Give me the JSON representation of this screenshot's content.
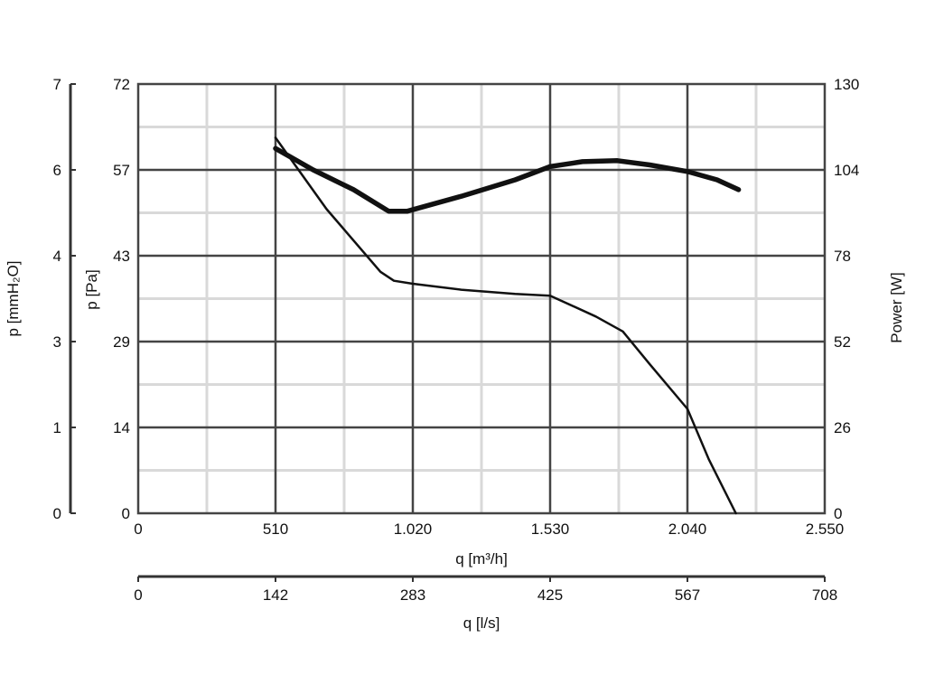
{
  "chart_data": {
    "type": "line",
    "axes": {
      "x_primary": {
        "label": "q [m³/h]",
        "ticks": [
          "0",
          "510",
          "1.020",
          "1.530",
          "2.040",
          "2.550"
        ],
        "range": [
          0,
          2550
        ]
      },
      "x_secondary": {
        "label": "q [l/s]",
        "ticks": [
          "0",
          "142",
          "283",
          "425",
          "567",
          "708"
        ],
        "range": [
          0,
          708
        ]
      },
      "y_left_inner": {
        "label": "p [Pa]",
        "ticks": [
          "0",
          "14",
          "29",
          "43",
          "57",
          "72"
        ],
        "range": [
          0,
          72
        ]
      },
      "y_left_outer": {
        "label": "p [mmH₂O]",
        "ticks": [
          "0",
          "1",
          "3",
          "4",
          "6",
          "7"
        ],
        "range": [
          0,
          7
        ]
      },
      "y_right": {
        "label": "Power [W]",
        "ticks": [
          "0",
          "26",
          "52",
          "78",
          "104",
          "130"
        ],
        "range": [
          0,
          130
        ]
      }
    },
    "grid": true,
    "series": [
      {
        "axis": "left",
        "style": "thin",
        "points": [
          [
            510,
            63
          ],
          [
            700,
            51
          ],
          [
            900,
            40.5
          ],
          [
            950,
            39
          ],
          [
            1020,
            38.5
          ],
          [
            1200,
            37.5
          ],
          [
            1400,
            36.8
          ],
          [
            1530,
            36.5
          ],
          [
            1700,
            33
          ],
          [
            1800,
            30.5
          ],
          [
            1900,
            25
          ],
          [
            2040,
            17.5
          ],
          [
            2120,
            9
          ],
          [
            2220,
            0
          ]
        ]
      },
      {
        "axis": "right",
        "style": "thick",
        "points": [
          [
            510,
            110.5
          ],
          [
            650,
            104
          ],
          [
            800,
            98
          ],
          [
            930,
            91.5
          ],
          [
            1000,
            91.5
          ],
          [
            1200,
            96
          ],
          [
            1400,
            101
          ],
          [
            1530,
            105
          ],
          [
            1650,
            106.5
          ],
          [
            1780,
            106.8
          ],
          [
            1900,
            105.5
          ],
          [
            2040,
            103.5
          ],
          [
            2150,
            101
          ],
          [
            2230,
            98
          ]
        ]
      }
    ]
  }
}
